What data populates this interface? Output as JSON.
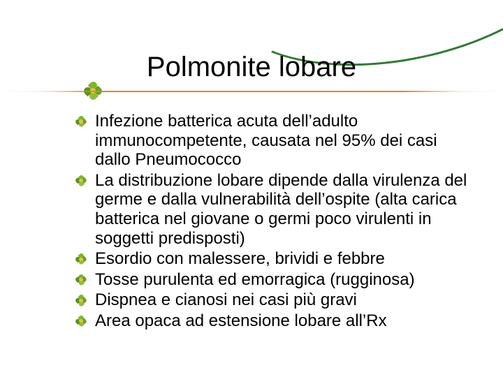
{
  "slide": {
    "title": "Polmonite lobare",
    "title_fontsize": 40,
    "title_color": "#000000",
    "rule_color": "#d98820",
    "swoosh_color": "#2e7d32",
    "background_color": "#ffffff",
    "body_fontsize": 24,
    "body_color": "#000000",
    "bullet_icon": "flower-leaf-icon",
    "bullet_icon_colors": {
      "petals": [
        "#7cb52a",
        "#6aa221",
        "#8fbf3a",
        "#5c931c"
      ],
      "center": "#e0c24a"
    },
    "bullets": [
      "Infezione batterica acuta dell’adulto immunocompetente, causata nel 95% dei casi dallo Pneumococco",
      "La distribuzione lobare dipende dalla virulenza del germe e dalla vulnerabilità dell’ospite (alta carica batterica nel giovane o germi poco virulenti in soggetti predisposti)",
      "Esordio con malessere, brividi e febbre",
      "Tosse purulenta ed emorragica (rugginosa)",
      "Dispnea e cianosi nei casi più gravi",
      "Area opaca ad estensione lobare all’Rx"
    ]
  }
}
